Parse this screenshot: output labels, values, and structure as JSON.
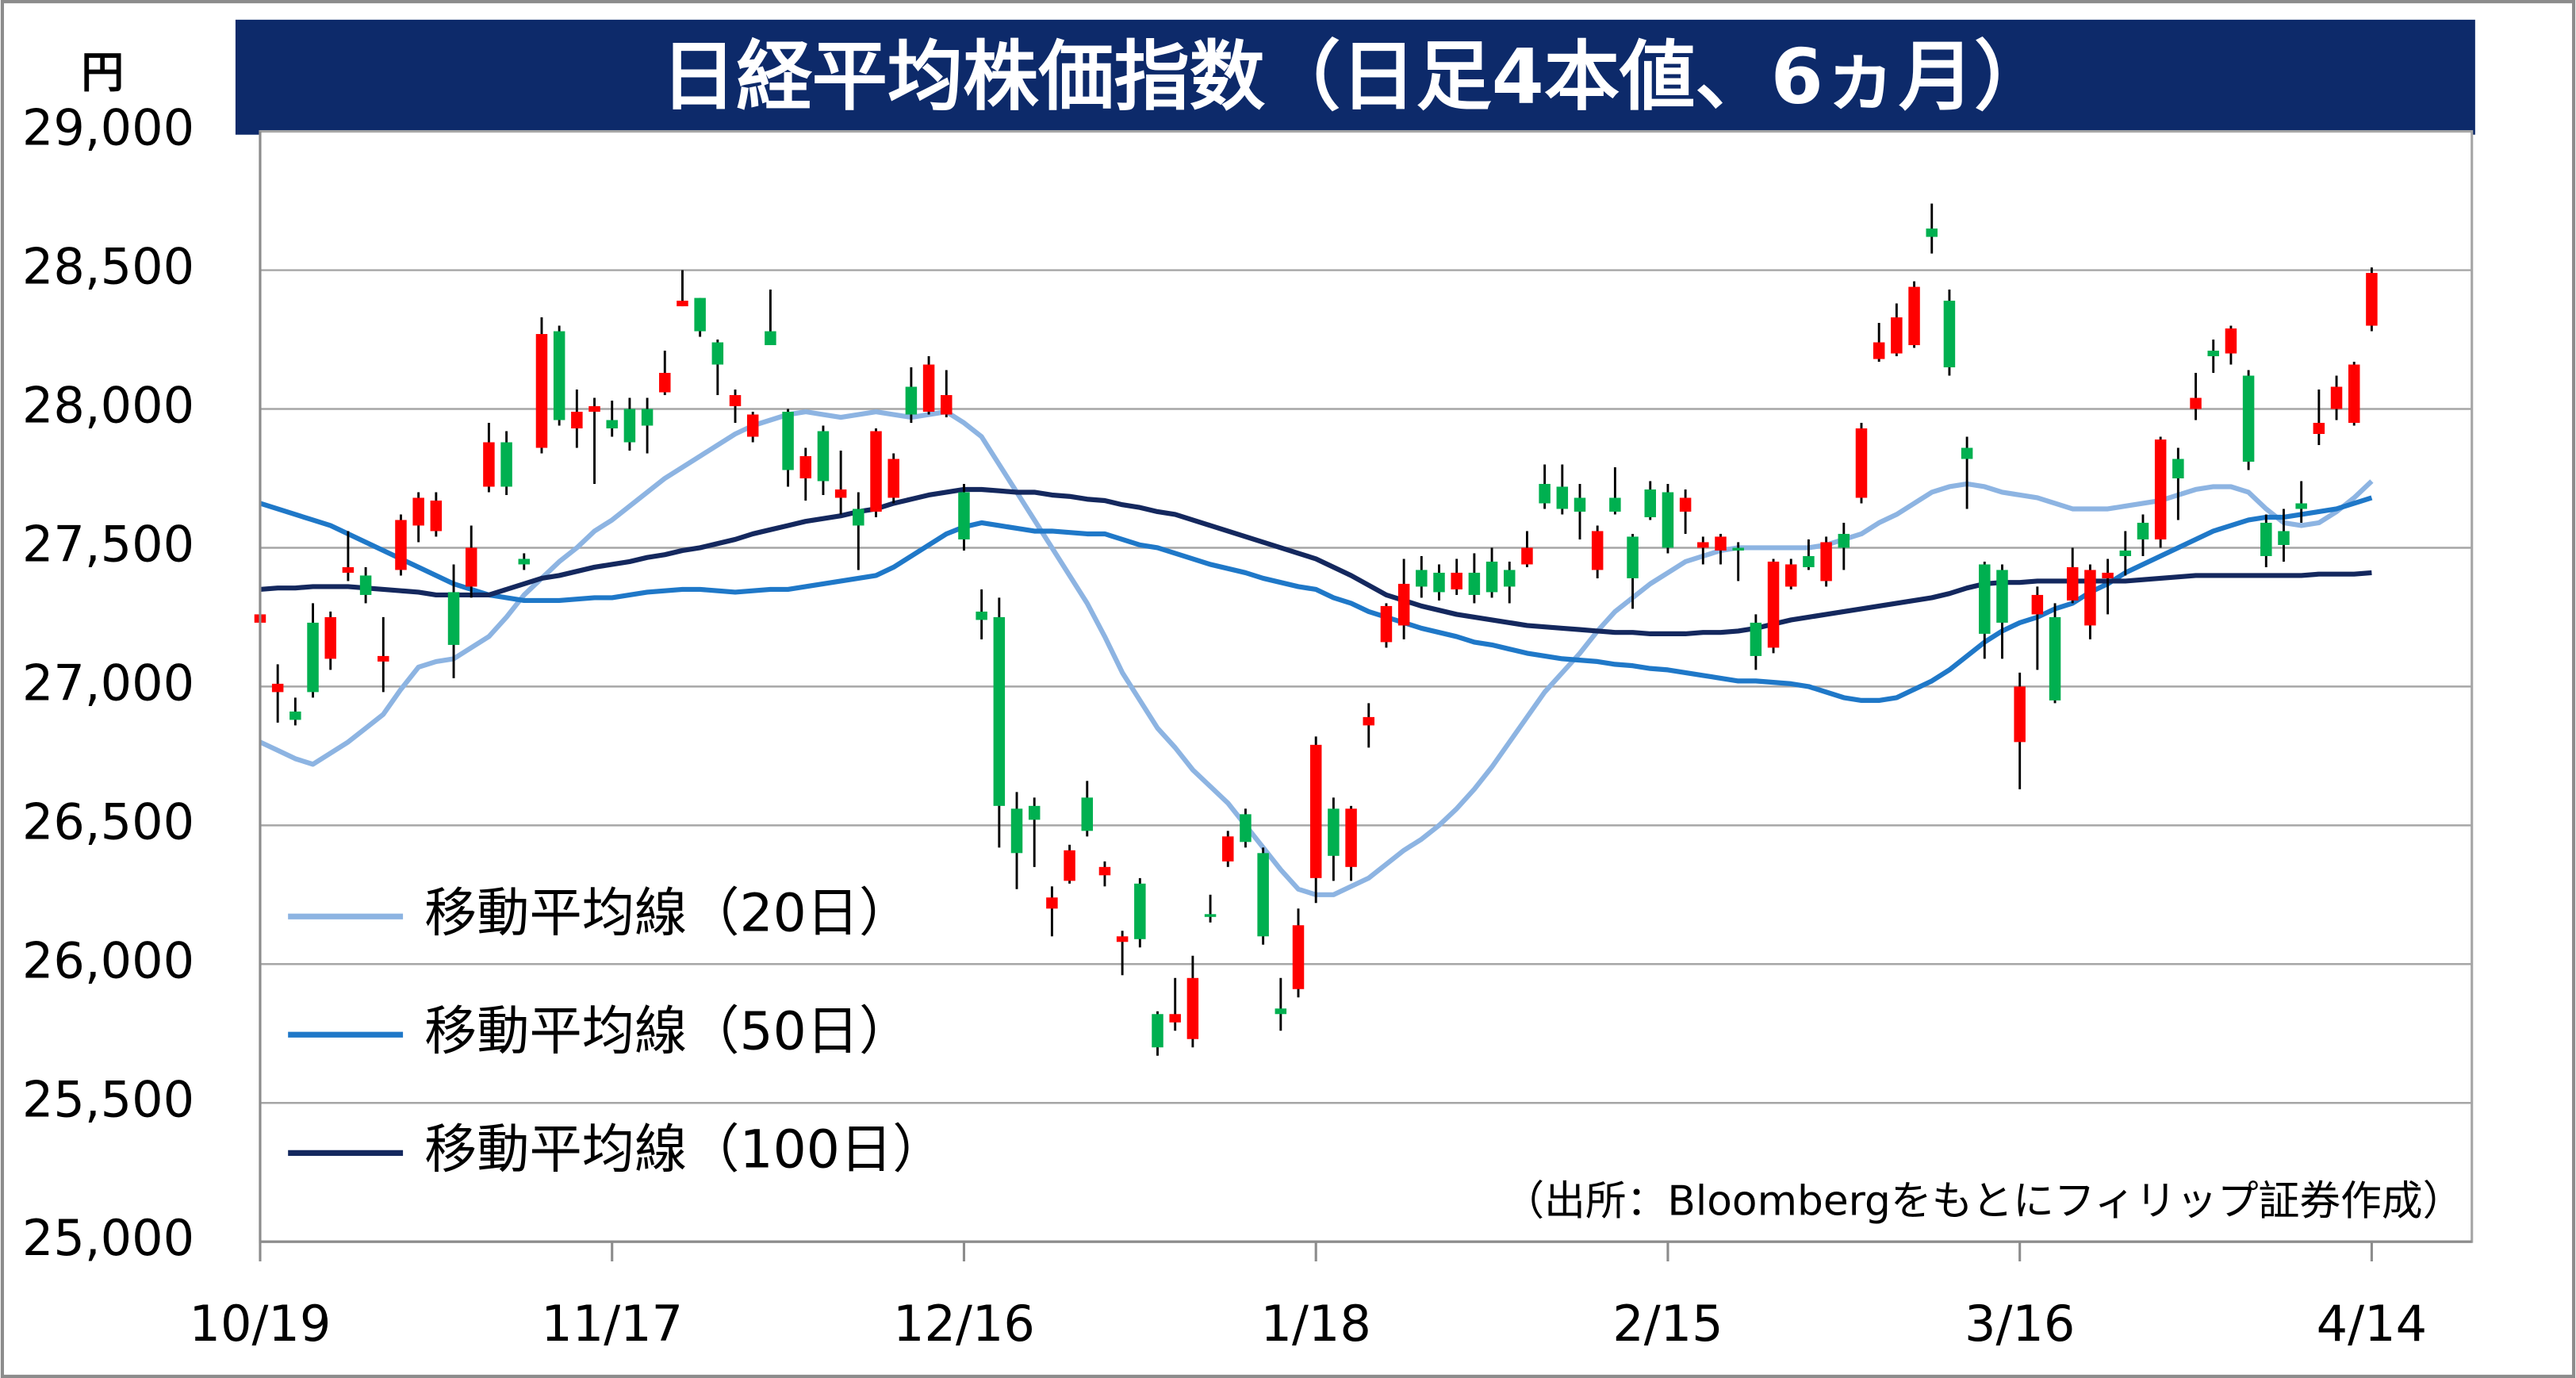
{
  "chart_data": {
    "type": "candlestick",
    "title": "日経平均株価指数（日足4本値、6ヵ月）",
    "y_unit": "円",
    "note": "（出所：Bloombergをもとにフィリップ証券作成）",
    "ylim": [
      25000,
      29000
    ],
    "yticks": [
      {
        "value": 25000,
        "label": "25,000"
      },
      {
        "value": 25500,
        "label": "25,500"
      },
      {
        "value": 26000,
        "label": "26,000"
      },
      {
        "value": 26500,
        "label": "26,500"
      },
      {
        "value": 27000,
        "label": "27,000"
      },
      {
        "value": 27500,
        "label": "27,500"
      },
      {
        "value": 28000,
        "label": "28,000"
      },
      {
        "value": 28500,
        "label": "28,500"
      },
      {
        "value": 29000,
        "label": "29,000"
      }
    ],
    "grid": true,
    "up_color": "#ff0000",
    "down_color": "#00b050",
    "categories": [
      "10/19",
      null,
      null,
      null,
      null,
      null,
      null,
      null,
      null,
      null,
      null,
      null,
      null,
      null,
      null,
      null,
      null,
      null,
      null,
      null,
      "11/17",
      null,
      null,
      null,
      null,
      null,
      null,
      null,
      null,
      null,
      null,
      null,
      null,
      null,
      null,
      null,
      null,
      null,
      null,
      null,
      "12/16",
      null,
      null,
      null,
      null,
      null,
      null,
      null,
      null,
      null,
      null,
      null,
      null,
      null,
      null,
      null,
      null,
      null,
      null,
      null,
      "1/18",
      null,
      null,
      null,
      null,
      null,
      null,
      null,
      null,
      null,
      null,
      null,
      null,
      null,
      null,
      null,
      null,
      null,
      null,
      null,
      "2/15",
      null,
      null,
      null,
      null,
      null,
      null,
      null,
      null,
      null,
      null,
      null,
      null,
      null,
      null,
      null,
      null,
      null,
      null,
      null,
      "3/16",
      null,
      null,
      null,
      null,
      null,
      null,
      null,
      null,
      null,
      null,
      null,
      null,
      null,
      null,
      null,
      null,
      null,
      null,
      null,
      "4/14"
    ],
    "open": [
      27230,
      26980,
      26910,
      27230,
      27100,
      27410,
      27400,
      27090,
      27420,
      27580,
      27560,
      27340,
      27360,
      27720,
      27880,
      27460,
      27860,
      28280,
      27930,
      27990,
      27960,
      28000,
      28000,
      28060,
      28370,
      28400,
      28240,
      28010,
      27900,
      28280,
      27990,
      27750,
      27920,
      27680,
      27640,
      27630,
      27680,
      28080,
      27990,
      27980,
      27700,
      27270,
      27250,
      26560,
      26570,
      26200,
      26300,
      26600,
      26320,
      26080,
      26290,
      25820,
      25790,
      25730,
      26180,
      26370,
      26540,
      26400,
      25840,
      25910,
      26310,
      26560,
      26350,
      26860,
      27160,
      27220,
      27420,
      27410,
      27350,
      27410,
      27450,
      27420,
      27440,
      27730,
      27720,
      27680,
      27420,
      27680,
      27540,
      27710,
      27700,
      27630,
      27500,
      27490,
      27500,
      27230,
      27140,
      27360,
      27470,
      27380,
      27550,
      27680,
      28180,
      28200,
      28230,
      28650,
      28390,
      27860,
      27440,
      27420,
      26800,
      27260,
      27250,
      27310,
      27220,
      27390,
      27490,
      27590,
      27530,
      27820,
      28000,
      28210,
      28200,
      28120,
      27590,
      27560,
      27660,
      27910,
      28000,
      27950,
      28300
    ],
    "high": [
      27270,
      27080,
      26960,
      27300,
      27270,
      27560,
      27430,
      27250,
      27620,
      27700,
      27700,
      27440,
      27580,
      27950,
      27920,
      27480,
      28330,
      28300,
      28070,
      28040,
      28030,
      28040,
      28040,
      28210,
      28500,
      28400,
      28250,
      28070,
      27990,
      28430,
      28000,
      27860,
      27940,
      27850,
      27700,
      27930,
      27840,
      28150,
      28190,
      28140,
      27730,
      27350,
      27320,
      26620,
      26600,
      26280,
      26430,
      26660,
      26370,
      26120,
      26310,
      25830,
      25950,
      26030,
      26250,
      26480,
      26560,
      26420,
      25950,
      26200,
      26820,
      26600,
      26570,
      26940,
      27300,
      27460,
      27470,
      27440,
      27460,
      27480,
      27500,
      27450,
      27560,
      27800,
      27800,
      27730,
      27580,
      27790,
      27550,
      27740,
      27730,
      27710,
      27540,
      27550,
      27520,
      27260,
      27460,
      27460,
      27530,
      27540,
      27590,
      27950,
      28310,
      28380,
      28460,
      28740,
      28430,
      27900,
      27450,
      27440,
      27050,
      27360,
      27300,
      27500,
      27440,
      27460,
      27560,
      27620,
      27900,
      27860,
      28130,
      28250,
      28300,
      28140,
      27620,
      27640,
      27740,
      28070,
      28120,
      28170,
      28510
    ],
    "low": [
      27220,
      26870,
      26860,
      26960,
      27060,
      27380,
      27300,
      26980,
      27400,
      27520,
      27540,
      27030,
      27320,
      27700,
      27690,
      27420,
      27840,
      27940,
      27860,
      27730,
      27900,
      27850,
      27840,
      28050,
      28370,
      28260,
      28050,
      27950,
      27880,
      28230,
      27720,
      27670,
      27690,
      27620,
      27420,
      27610,
      27660,
      27950,
      27980,
      27970,
      27490,
      27170,
      26420,
      26270,
      26350,
      26100,
      26290,
      26460,
      26280,
      25960,
      26060,
      25670,
      25760,
      25700,
      26150,
      26350,
      26420,
      26070,
      25760,
      25880,
      26220,
      26300,
      26300,
      26780,
      27140,
      27170,
      27320,
      27310,
      27330,
      27300,
      27320,
      27300,
      27430,
      27640,
      27620,
      27530,
      27390,
      27620,
      27280,
      27600,
      27480,
      27550,
      27440,
      27440,
      27380,
      27060,
      27120,
      27350,
      27420,
      27360,
      27420,
      27660,
      28170,
      28190,
      28220,
      28560,
      28120,
      27640,
      27100,
      27100,
      26630,
      27060,
      26940,
      27300,
      27170,
      27260,
      27400,
      27470,
      27500,
      27600,
      27960,
      28130,
      28160,
      27780,
      27430,
      27450,
      27590,
      27870,
      27960,
      27940,
      28280
    ],
    "close": [
      27260,
      27010,
      26880,
      26980,
      27250,
      27430,
      27330,
      27110,
      27600,
      27680,
      27670,
      27150,
      27500,
      27880,
      27720,
      27440,
      28270,
      27960,
      27990,
      28010,
      27930,
      27880,
      27940,
      28130,
      28390,
      28280,
      28160,
      28050,
      27980,
      28230,
      27780,
      27830,
      27740,
      27710,
      27580,
      27920,
      27820,
      27980,
      28160,
      28050,
      27530,
      27240,
      26570,
      26400,
      26520,
      26240,
      26410,
      26480,
      26350,
      26100,
      26090,
      25700,
      25820,
      25950,
      26170,
      26460,
      26440,
      26100,
      25820,
      26140,
      26790,
      26390,
      26560,
      26890,
      27290,
      27370,
      27360,
      27340,
      27410,
      27330,
      27340,
      27360,
      27500,
      27660,
      27640,
      27630,
      27560,
      27630,
      27390,
      27610,
      27500,
      27680,
      27520,
      27540,
      27490,
      27110,
      27450,
      27440,
      27430,
      27520,
      27500,
      27930,
      28240,
      28330,
      28440,
      28620,
      28150,
      27820,
      27190,
      27230,
      27000,
      27330,
      26950,
      27430,
      27420,
      27410,
      27470,
      27530,
      27890,
      27750,
      28040,
      28190,
      28290,
      27810,
      27470,
      27510,
      27640,
      27950,
      28080,
      28160,
      28490
    ],
    "series": [
      {
        "name": "移動平均線（20日）",
        "color": "#8db4e2",
        "type": "line",
        "values": [
          26800,
          26770,
          26740,
          26720,
          26760,
          26800,
          26850,
          26900,
          26990,
          27070,
          27090,
          27100,
          27140,
          27180,
          27250,
          27330,
          27390,
          27450,
          27500,
          27560,
          27600,
          27650,
          27700,
          27750,
          27790,
          27830,
          27870,
          27910,
          27940,
          27960,
          27980,
          27990,
          27980,
          27970,
          27980,
          27990,
          27980,
          27970,
          27980,
          27990,
          27950,
          27900,
          27800,
          27700,
          27600,
          27500,
          27400,
          27300,
          27180,
          27050,
          26950,
          26850,
          26780,
          26700,
          26640,
          26580,
          26500,
          26420,
          26340,
          26270,
          26250,
          26250,
          26280,
          26310,
          26360,
          26410,
          26450,
          26500,
          26560,
          26630,
          26710,
          26800,
          26890,
          26980,
          27050,
          27120,
          27200,
          27270,
          27320,
          27370,
          27410,
          27450,
          27470,
          27490,
          27500,
          27500,
          27500,
          27500,
          27500,
          27510,
          27530,
          27550,
          27590,
          27620,
          27660,
          27700,
          27720,
          27730,
          27720,
          27700,
          27690,
          27680,
          27660,
          27640,
          27640,
          27640,
          27650,
          27660,
          27670,
          27690,
          27710,
          27720,
          27720,
          27700,
          27640,
          27590,
          27580,
          27590,
          27630,
          27680,
          27740
        ]
      },
      {
        "name": "移動平均線（50日）",
        "color": "#1f78c8",
        "type": "line",
        "values": [
          27660,
          27640,
          27620,
          27600,
          27580,
          27550,
          27520,
          27490,
          27460,
          27430,
          27400,
          27370,
          27350,
          27330,
          27320,
          27310,
          27310,
          27310,
          27315,
          27320,
          27320,
          27330,
          27340,
          27345,
          27350,
          27350,
          27345,
          27340,
          27345,
          27350,
          27350,
          27360,
          27370,
          27380,
          27390,
          27400,
          27430,
          27470,
          27510,
          27550,
          27575,
          27590,
          27580,
          27570,
          27560,
          27560,
          27555,
          27550,
          27550,
          27530,
          27510,
          27500,
          27480,
          27460,
          27440,
          27425,
          27410,
          27390,
          27375,
          27360,
          27350,
          27320,
          27300,
          27270,
          27250,
          27230,
          27210,
          27195,
          27180,
          27160,
          27150,
          27135,
          27120,
          27110,
          27100,
          27095,
          27090,
          27080,
          27075,
          27065,
          27060,
          27050,
          27040,
          27030,
          27020,
          27020,
          27015,
          27010,
          27000,
          26980,
          26960,
          26950,
          26950,
          26960,
          26990,
          27020,
          27060,
          27110,
          27160,
          27200,
          27230,
          27250,
          27280,
          27300,
          27340,
          27370,
          27410,
          27440,
          27470,
          27500,
          27530,
          27560,
          27580,
          27600,
          27610,
          27610,
          27620,
          27630,
          27640,
          27660,
          27680
        ]
      },
      {
        "name": "移動平均線（100日）",
        "color": "#14285e",
        "type": "line",
        "values": [
          27350,
          27355,
          27355,
          27360,
          27360,
          27360,
          27355,
          27350,
          27345,
          27340,
          27330,
          27330,
          27330,
          27330,
          27350,
          27370,
          27390,
          27400,
          27415,
          27430,
          27440,
          27450,
          27465,
          27475,
          27490,
          27500,
          27515,
          27530,
          27550,
          27565,
          27580,
          27595,
          27605,
          27615,
          27630,
          27640,
          27660,
          27675,
          27690,
          27700,
          27710,
          27710,
          27705,
          27700,
          27700,
          27690,
          27685,
          27675,
          27670,
          27655,
          27645,
          27630,
          27620,
          27600,
          27580,
          27560,
          27540,
          27520,
          27500,
          27480,
          27460,
          27430,
          27400,
          27365,
          27330,
          27310,
          27290,
          27275,
          27260,
          27250,
          27240,
          27230,
          27220,
          27215,
          27210,
          27205,
          27200,
          27195,
          27195,
          27190,
          27190,
          27190,
          27195,
          27195,
          27200,
          27210,
          27225,
          27240,
          27250,
          27260,
          27270,
          27280,
          27290,
          27300,
          27310,
          27320,
          27335,
          27355,
          27370,
          27375,
          27375,
          27380,
          27380,
          27380,
          27380,
          27380,
          27380,
          27385,
          27390,
          27395,
          27400,
          27400,
          27400,
          27400,
          27400,
          27400,
          27400,
          27405,
          27405,
          27405,
          27410
        ]
      }
    ]
  }
}
